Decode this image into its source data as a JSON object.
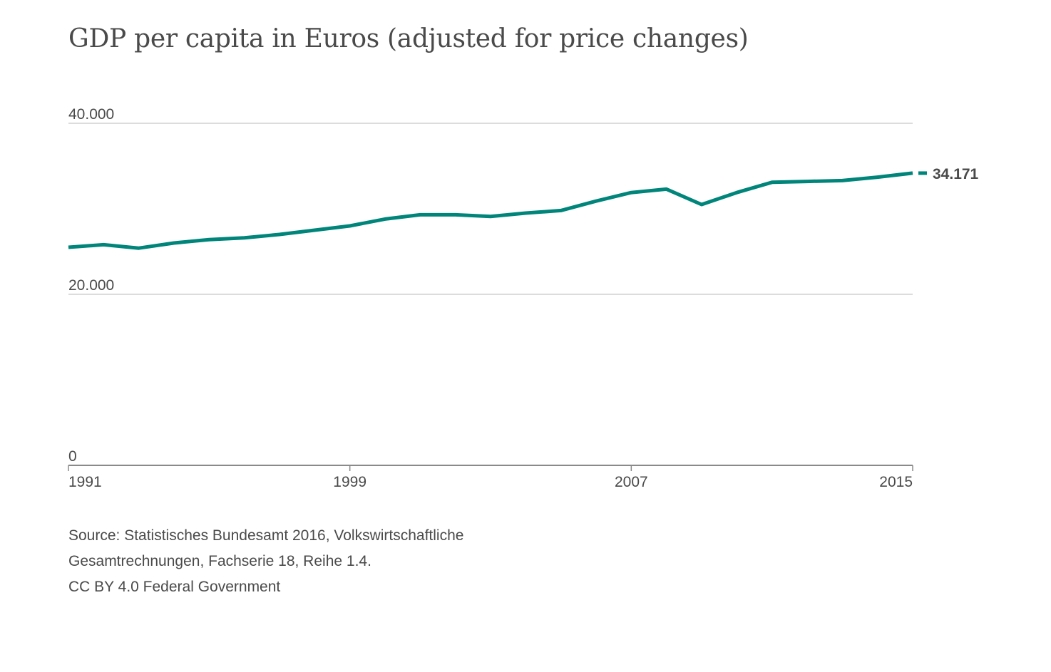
{
  "title": "GDP per capita in Euros (adjusted for price changes)",
  "chart_data": {
    "type": "line",
    "title": "GDP per capita in Euros (adjusted for price changes)",
    "xlabel": "",
    "ylabel": "",
    "x": [
      1991,
      1992,
      1993,
      1994,
      1995,
      1996,
      1997,
      1998,
      1999,
      2000,
      2001,
      2002,
      2003,
      2004,
      2005,
      2006,
      2007,
      2008,
      2009,
      2010,
      2011,
      2012,
      2013,
      2014,
      2015
    ],
    "series": [
      {
        "values": [
          25500,
          25800,
          25400,
          26000,
          26400,
          26600,
          27000,
          27500,
          28000,
          28800,
          29300,
          29300,
          29100,
          29500,
          29800,
          30900,
          31900,
          32300,
          30500,
          31900,
          33100,
          33200,
          33300,
          33700,
          34171
        ],
        "color": "#00857a"
      }
    ],
    "end_label": "34.171",
    "ylim": [
      0,
      40000
    ],
    "yticks": [
      0,
      20000,
      40000
    ],
    "ytick_labels": [
      "0",
      "20.000",
      "40.000"
    ],
    "xticks": [
      1991,
      1999,
      2007,
      2015
    ],
    "xtick_labels": [
      "1991",
      "1999",
      "2007",
      "2015"
    ],
    "grid": true,
    "legend": "none"
  },
  "source": {
    "line1": "Source: Statistisches Bundesamt 2016, Volkswirtschaftliche",
    "line2": "Gesamtrechnungen, Fachserie 18, Reihe 1.4.",
    "line3": "CC BY 4.0 Federal Government"
  },
  "colors": {
    "line": "#00857a",
    "text": "#4a4a4a",
    "grid": "#d0d0d0",
    "axis": "#8a8a8a"
  }
}
